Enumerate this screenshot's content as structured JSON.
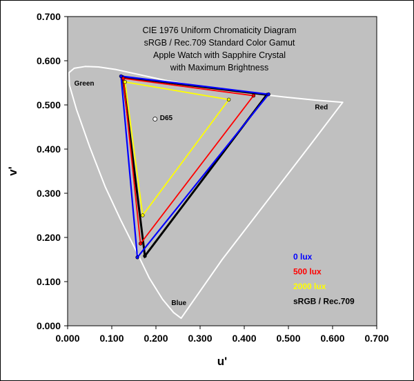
{
  "chart_data": {
    "type": "scatter",
    "title_lines": [
      "CIE 1976 Uniform Chromaticity Diagram",
      "sRGB / Rec.709 Standard Color Gamut",
      "Apple Watch with Sapphire Crystal",
      "with Maximum Brightness"
    ],
    "xlabel": "u'",
    "ylabel": "v'",
    "xlim": [
      0,
      0.7
    ],
    "ylim": [
      0,
      0.7
    ],
    "x_ticks": [
      "0.000",
      "0.100",
      "0.200",
      "0.300",
      "0.400",
      "0.500",
      "0.600",
      "0.700"
    ],
    "y_ticks": [
      "0.000",
      "0.100",
      "0.200",
      "0.300",
      "0.400",
      "0.500",
      "0.600",
      "0.700"
    ],
    "plot_background": "#c0c0c0",
    "grid": false,
    "legend_position": "bottom-right",
    "spectral_locus": {
      "color": "#ffffff",
      "points": [
        [
          0.257,
          0.017
        ],
        [
          0.24,
          0.03
        ],
        [
          0.215,
          0.06
        ],
        [
          0.185,
          0.108
        ],
        [
          0.155,
          0.17
        ],
        [
          0.12,
          0.24
        ],
        [
          0.085,
          0.315
        ],
        [
          0.05,
          0.405
        ],
        [
          0.02,
          0.49
        ],
        [
          0.004,
          0.545
        ],
        [
          0.003,
          0.573
        ],
        [
          0.015,
          0.583
        ],
        [
          0.04,
          0.587
        ],
        [
          0.07,
          0.586
        ],
        [
          0.11,
          0.58
        ],
        [
          0.16,
          0.569
        ],
        [
          0.22,
          0.556
        ],
        [
          0.28,
          0.545
        ],
        [
          0.35,
          0.535
        ],
        [
          0.42,
          0.526
        ],
        [
          0.49,
          0.518
        ],
        [
          0.56,
          0.511
        ],
        [
          0.623,
          0.506
        ],
        [
          0.55,
          0.41
        ],
        [
          0.45,
          0.28
        ],
        [
          0.35,
          0.15
        ],
        [
          0.257,
          0.017
        ]
      ]
    },
    "region_labels": [
      {
        "text": "Green",
        "u": 0.015,
        "v": 0.544
      },
      {
        "text": "Red",
        "u": 0.56,
        "v": 0.49
      },
      {
        "text": "Blue",
        "u": 0.235,
        "v": 0.047
      },
      {
        "text": "D65",
        "u": 0.209,
        "v": 0.466
      }
    ],
    "white_point": {
      "name": "D65",
      "u": 0.198,
      "v": 0.468
    },
    "series": [
      {
        "name": "sRGB / Rec.709",
        "color": "#000000",
        "points": [
          [
            0.125,
            0.563
          ],
          [
            0.451,
            0.523
          ],
          [
            0.175,
            0.158
          ]
        ]
      },
      {
        "name": "0 lux",
        "color": "#0000ff",
        "points": [
          [
            0.121,
            0.565
          ],
          [
            0.455,
            0.524
          ],
          [
            0.158,
            0.155
          ]
        ]
      },
      {
        "name": "500 lux",
        "color": "#ff0000",
        "points": [
          [
            0.126,
            0.56
          ],
          [
            0.421,
            0.521
          ],
          [
            0.165,
            0.186
          ]
        ]
      },
      {
        "name": "2000 lux",
        "color": "#ffff00",
        "points": [
          [
            0.13,
            0.552
          ],
          [
            0.365,
            0.512
          ],
          [
            0.17,
            0.25
          ]
        ]
      }
    ],
    "legend": [
      {
        "label": "0 lux",
        "color": "#0000ff"
      },
      {
        "label": "500 lux",
        "color": "#ff0000"
      },
      {
        "label": "2000 lux",
        "color": "#ffff00"
      },
      {
        "label": "sRGB / Rec.709",
        "color": "#000000"
      }
    ]
  }
}
